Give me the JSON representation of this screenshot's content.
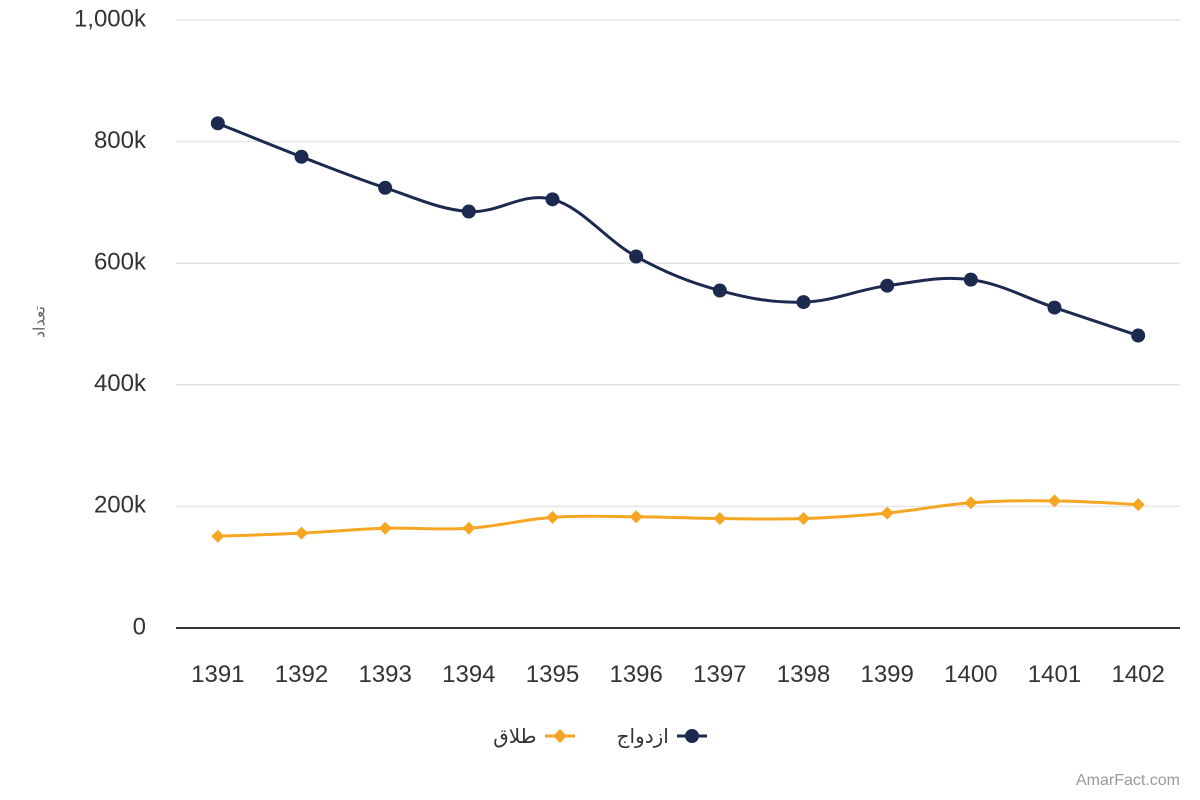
{
  "chart_data": {
    "type": "line",
    "categories": [
      "1391",
      "1392",
      "1393",
      "1394",
      "1395",
      "1396",
      "1397",
      "1398",
      "1399",
      "1400",
      "1401",
      "1402"
    ],
    "series": [
      {
        "name": "ازدواج",
        "color": "#1b2a4e",
        "marker": "circle",
        "values": [
          830000,
          775000,
          724000,
          685000,
          705000,
          611000,
          555000,
          536000,
          563000,
          573000,
          527000,
          481000
        ]
      },
      {
        "name": "طلاق",
        "color": "#f5a623",
        "marker": "diamond",
        "values": [
          151000,
          156000,
          164000,
          164000,
          182000,
          183000,
          180000,
          180000,
          189000,
          206000,
          209000,
          203000
        ]
      }
    ],
    "ylabel": "تعداد",
    "xlabel": "",
    "ylim": [
      0,
      1000000
    ],
    "yticks": [
      {
        "value": 0,
        "label": "0"
      },
      {
        "value": 200000,
        "label": "200k"
      },
      {
        "value": 400000,
        "label": "400k"
      },
      {
        "value": 600000,
        "label": "600k"
      },
      {
        "value": 800000,
        "label": "800k"
      },
      {
        "value": 1000000,
        "label": "1,000k"
      }
    ],
    "grid": true,
    "legend": "bottom-center"
  },
  "credit": "AmarFact.com"
}
